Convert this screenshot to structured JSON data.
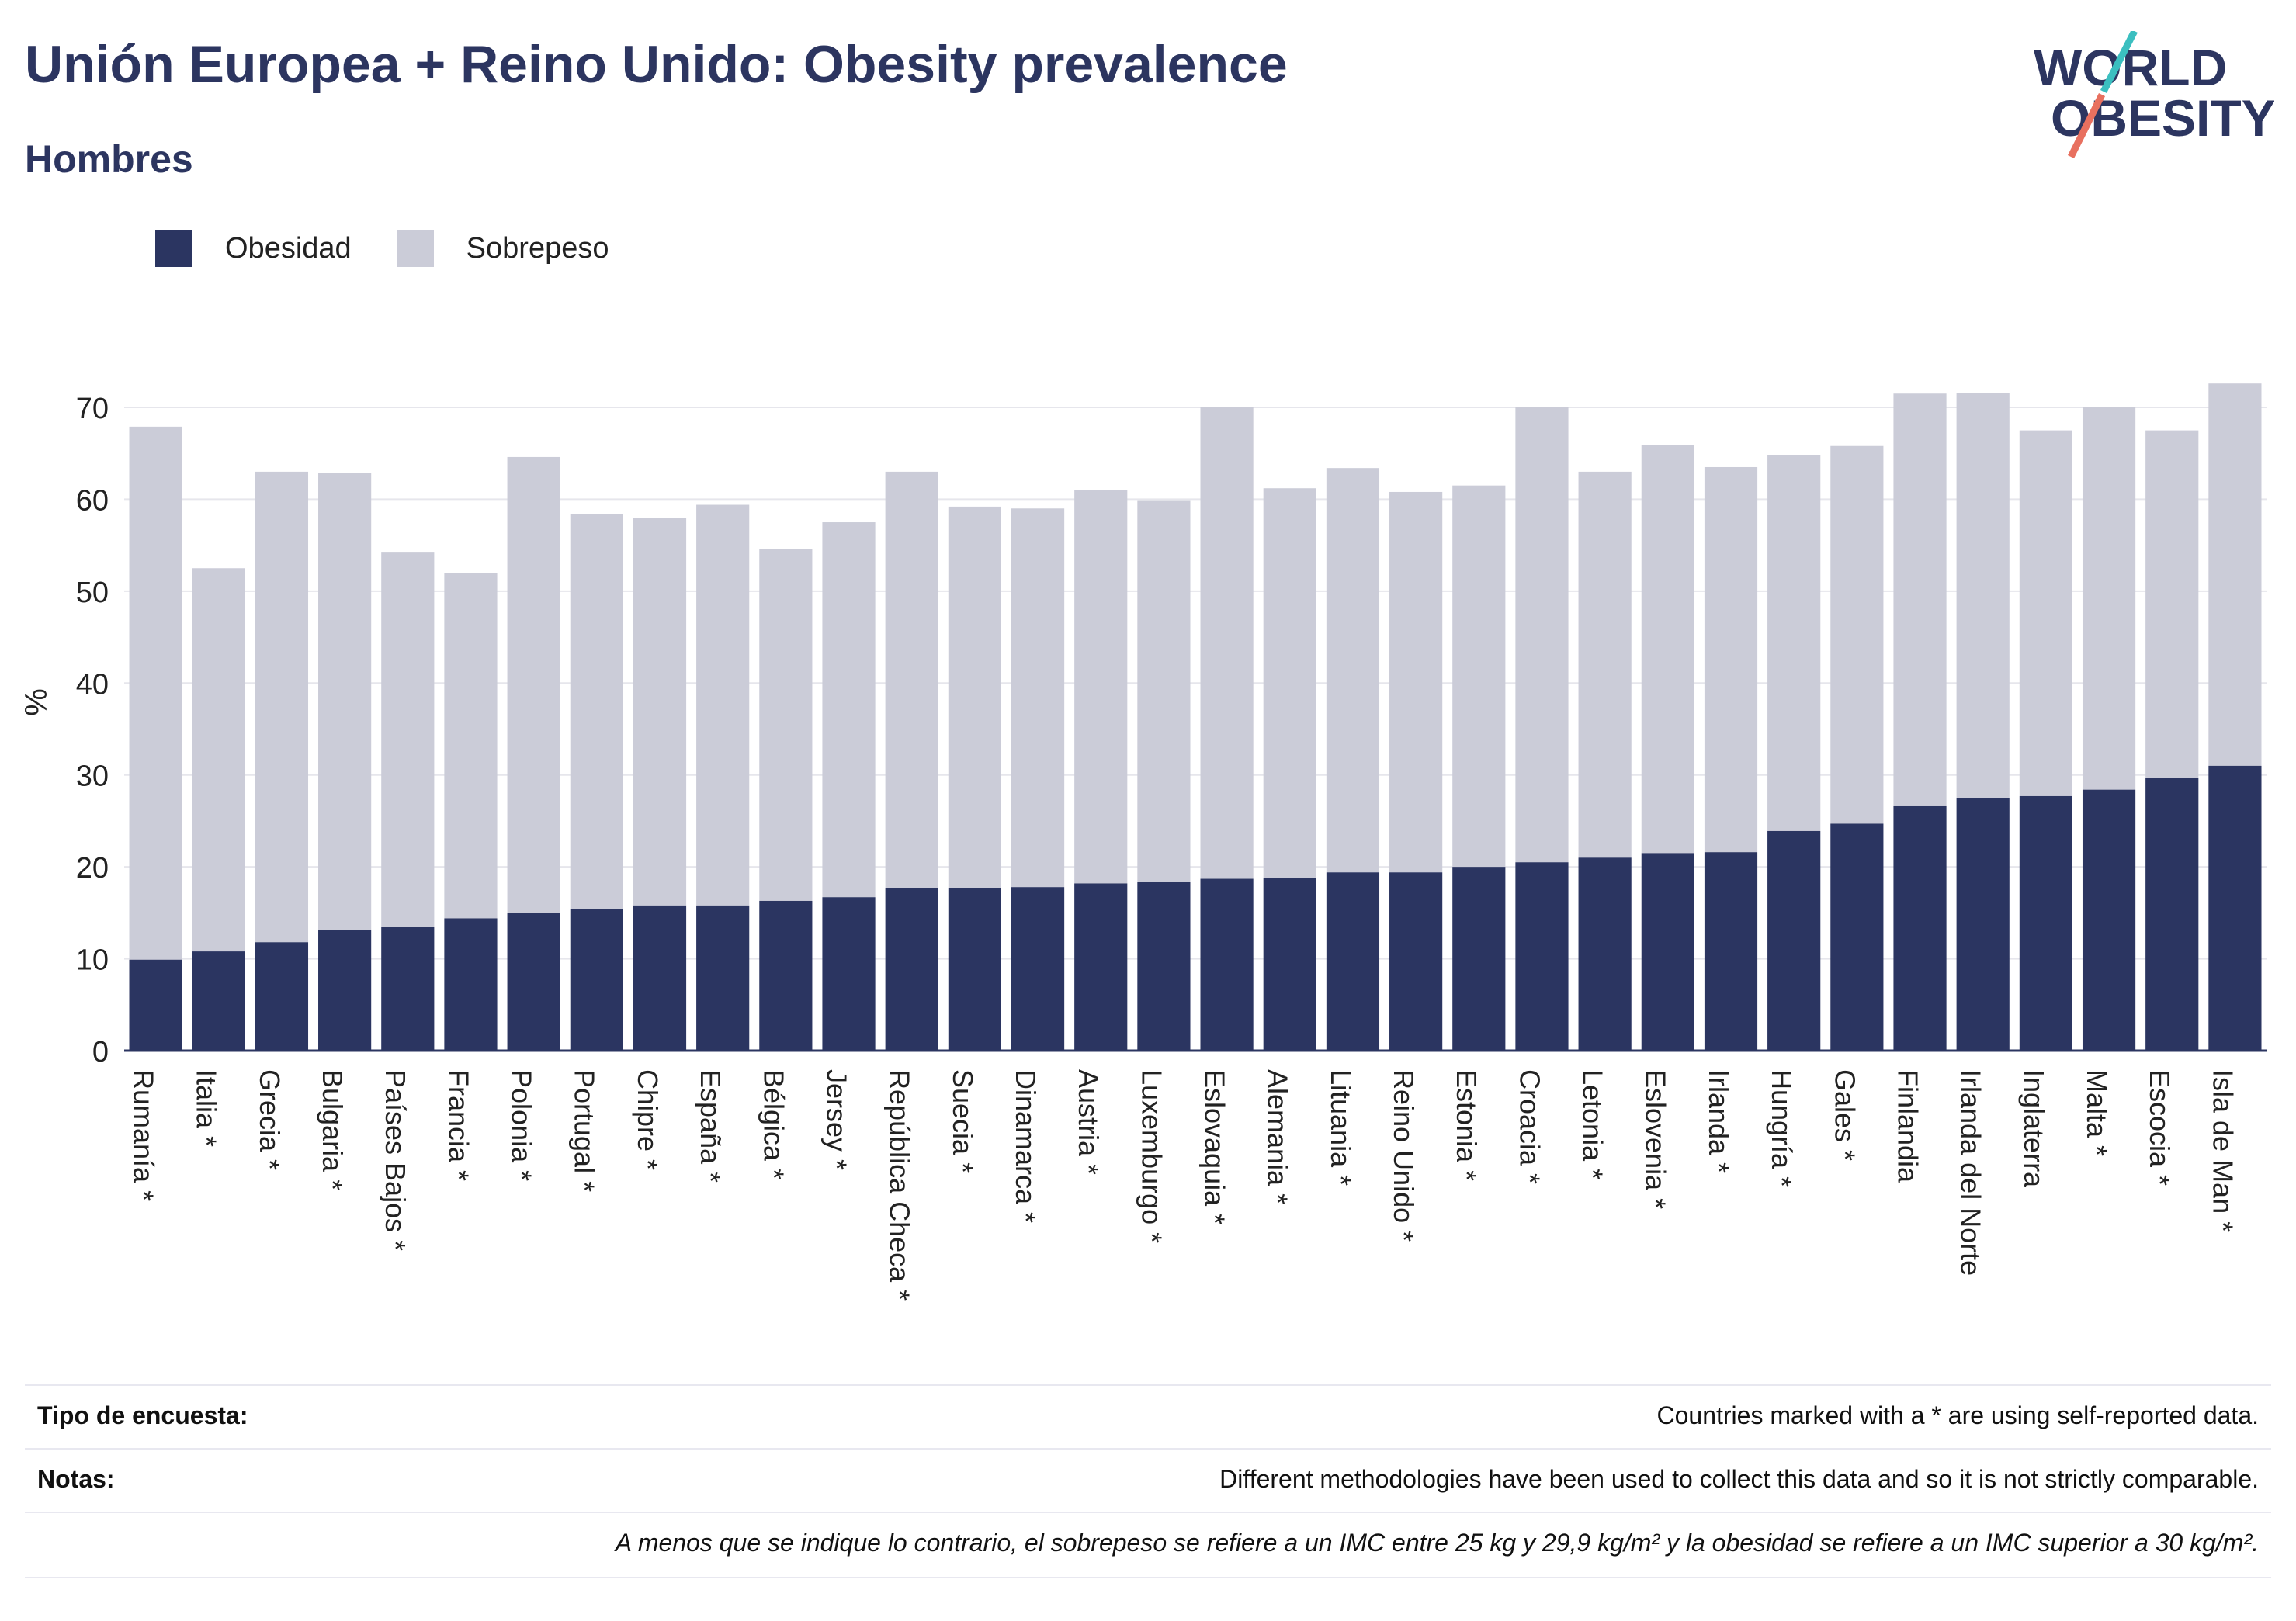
{
  "header": {
    "title": "Unión Europea + Reino Unido: Obesity prevalence",
    "subtitle": "Hombres"
  },
  "logo": {
    "line1": "WORLD",
    "line2": "OBESITY"
  },
  "legend": {
    "obesity_label": "Obesidad",
    "overweight_label": "Sobrepeso"
  },
  "colors": {
    "obesity": "#2b3561",
    "overweight": "#cbccd8",
    "title": "#2c3560",
    "logo_teal": "#3bbfc0",
    "logo_coral": "#e8705f"
  },
  "chart_data": {
    "type": "bar",
    "stacked": true,
    "ylabel": "%",
    "ylim": [
      0,
      73
    ],
    "yticks": [
      0,
      10,
      20,
      30,
      40,
      50,
      60,
      70
    ],
    "grid": true,
    "legend_position": "top-left",
    "categories": [
      "Rumanía *",
      "Italia *",
      "Grecia *",
      "Bulgaria *",
      "Países Bajos *",
      "Francia *",
      "Polonia *",
      "Portugal *",
      "Chipre *",
      "España *",
      "Bélgica *",
      "Jersey *",
      "República Checa *",
      "Suecia *",
      "Dinamarca *",
      "Austria *",
      "Luxemburgo *",
      "Eslovaquia *",
      "Alemania *",
      "Lituania *",
      "Reino Unido *",
      "Estonia *",
      "Croacia *",
      "Letonia *",
      "Eslovenia *",
      "Irlanda *",
      "Hungría *",
      "Gales *",
      "Finlandia",
      "Irlanda del Norte",
      "Inglaterra",
      "Malta *",
      "Escocia *",
      "Isla de Man *"
    ],
    "series": [
      {
        "name": "Obesidad",
        "values": [
          9.9,
          10.8,
          11.8,
          13.1,
          13.5,
          14.4,
          15.0,
          15.4,
          15.8,
          15.8,
          16.3,
          16.7,
          17.7,
          17.7,
          17.8,
          18.2,
          18.4,
          18.7,
          18.8,
          19.4,
          19.4,
          20.0,
          20.5,
          21.0,
          21.5,
          21.6,
          23.9,
          24.7,
          26.6,
          27.5,
          27.7,
          28.4,
          29.7,
          31.0
        ]
      },
      {
        "name": "Sobrepeso",
        "values": [
          58.0,
          41.7,
          51.2,
          49.8,
          40.7,
          37.6,
          49.6,
          43.0,
          42.2,
          43.6,
          38.3,
          40.8,
          45.3,
          41.5,
          41.2,
          42.8,
          41.5,
          51.3,
          42.4,
          44.0,
          41.4,
          41.5,
          49.5,
          42.0,
          44.4,
          41.9,
          40.9,
          41.1,
          44.9,
          44.1,
          39.8,
          41.6,
          37.8,
          41.6
        ]
      }
    ]
  },
  "footer": {
    "survey_label": "Tipo de encuesta:",
    "survey_text": "Countries marked with a * are using self-reported data.",
    "notes_label": "Notas:",
    "notes_text": "Different methodologies have been used to collect this data and so it is not strictly comparable.",
    "definition_text": "A menos que se indique lo contrario, el sobrepeso se refiere a un IMC entre 25 kg y 29,9 kg/m² y la obesidad se refiere a un IMC superior a 30 kg/m²."
  }
}
